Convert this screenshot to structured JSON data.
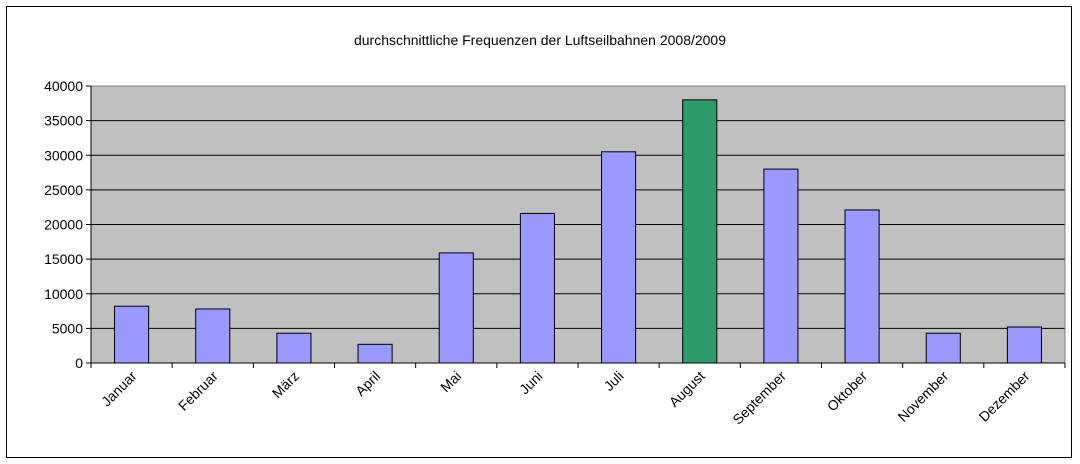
{
  "chart_data": {
    "type": "bar",
    "title": "durchschnittliche Frequenzen der Luftseilbahnen 2008/2009",
    "xlabel": "",
    "ylabel": "",
    "ylim": [
      0,
      40000
    ],
    "yticks": [
      0,
      5000,
      10000,
      15000,
      20000,
      25000,
      30000,
      35000,
      40000
    ],
    "grid": true,
    "legend": "none",
    "categories": [
      "Januar",
      "Februar",
      "März",
      "April",
      "Mai",
      "Juni",
      "Juli",
      "August",
      "September",
      "Oktober",
      "November",
      "Dezember"
    ],
    "values": [
      8200,
      7800,
      4300,
      2700,
      15900,
      21600,
      30500,
      38000,
      28000,
      22100,
      4300,
      5200
    ],
    "highlight_category": "August",
    "colors": {
      "bar": "#9999ff",
      "bar_highlight": "#2e9a6a",
      "plot_background": "#c0c0c0",
      "gridline": "#000000",
      "bar_outline": "#000000"
    }
  }
}
